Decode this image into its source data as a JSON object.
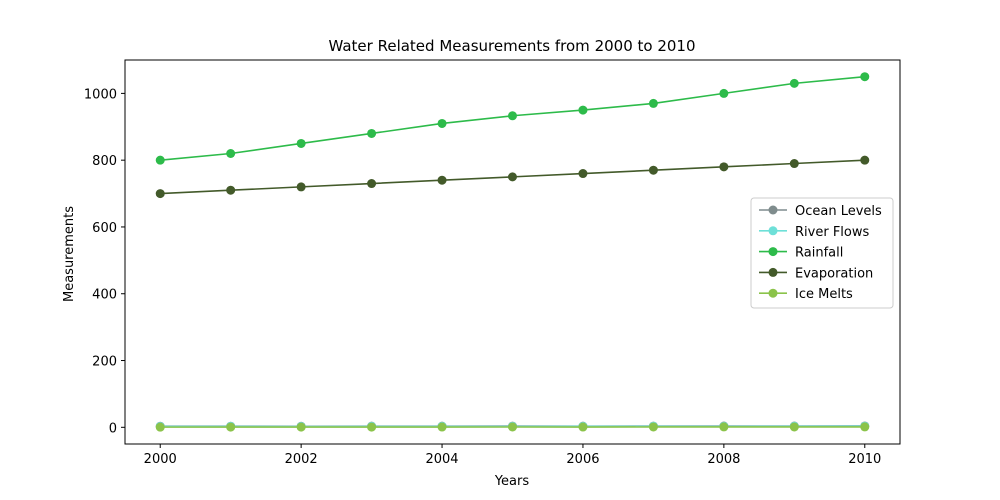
{
  "chart_data": {
    "type": "line",
    "title": "Water Related Measurements from 2000 to 2010",
    "xlabel": "Years",
    "ylabel": "Measurements",
    "xlim": [
      1999.5,
      2010.5
    ],
    "ylim": [
      -50,
      1100
    ],
    "xticks": [
      2000,
      2002,
      2004,
      2006,
      2008,
      2010
    ],
    "yticks": [
      0,
      200,
      400,
      600,
      800,
      1000
    ],
    "grid": false,
    "legend_position": "center-right",
    "x": [
      2000,
      2001,
      2002,
      2003,
      2004,
      2005,
      2006,
      2007,
      2008,
      2009,
      2010
    ],
    "series": [
      {
        "name": "Ocean Levels",
        "color": "#7f8c8d",
        "values": [
          3.2,
          3.3,
          3.1,
          3.4,
          3.5,
          3.6,
          3.5,
          3.7,
          3.8,
          3.9,
          4.0
        ]
      },
      {
        "name": "River Flows",
        "color": "#6ee0d8",
        "values": [
          2.5,
          2.6,
          2.4,
          2.7,
          2.8,
          2.6,
          2.9,
          3.0,
          2.8,
          3.1,
          3.2
        ]
      },
      {
        "name": "Rainfall",
        "color": "#2dbb4a",
        "values": [
          800,
          820,
          850,
          880,
          910,
          933,
          950,
          970,
          1000,
          1030,
          1050
        ]
      },
      {
        "name": "Evaporation",
        "color": "#435a2a",
        "values": [
          700,
          710,
          720,
          730,
          740,
          750,
          760,
          770,
          780,
          790,
          800
        ]
      },
      {
        "name": "Ice Melts",
        "color": "#8bc34a",
        "values": [
          0.5,
          0.6,
          0.7,
          0.6,
          0.8,
          0.9,
          0.8,
          1.0,
          1.1,
          1.0,
          1.2
        ]
      }
    ]
  }
}
